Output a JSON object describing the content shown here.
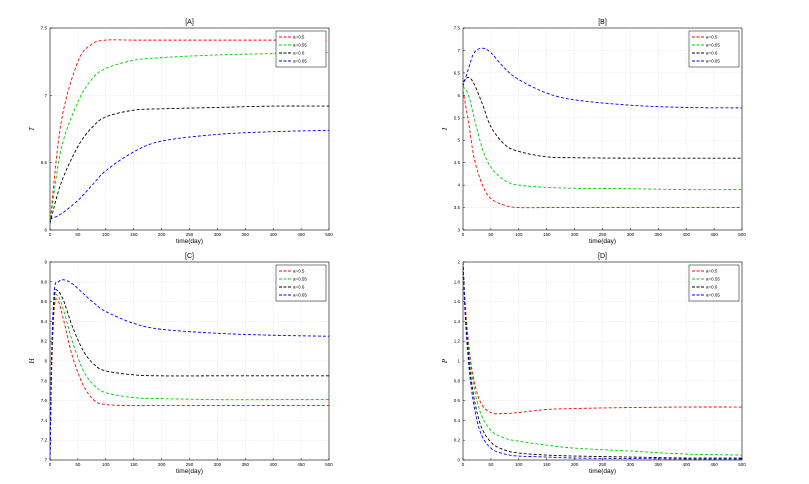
{
  "chart_data": [
    {
      "id": "A",
      "type": "line",
      "title": "[A]",
      "xlabel": "time(day)",
      "ylabel": "T",
      "xlim": [
        0,
        500
      ],
      "ylim": [
        6,
        7.5
      ],
      "xticks": [
        "0",
        "50",
        "100",
        "150",
        "200",
        "250",
        "300",
        "350",
        "400",
        "450",
        "500"
      ],
      "yticks": [
        "6",
        "6.5",
        "7",
        "7.5"
      ],
      "grid": true,
      "legend_position": "top-right",
      "x": [
        0,
        20,
        50,
        75,
        100,
        150,
        200,
        300,
        400,
        500
      ],
      "series": [
        {
          "name": "a=0.5",
          "color": "#ff0000",
          "values": [
            6.05,
            6.8,
            7.25,
            7.38,
            7.41,
            7.41,
            7.41,
            7.41,
            7.41,
            7.41
          ]
        },
        {
          "name": "a=0.55",
          "color": "#00cc00",
          "values": [
            6.05,
            6.6,
            6.95,
            7.12,
            7.2,
            7.26,
            7.28,
            7.3,
            7.31,
            7.32
          ]
        },
        {
          "name": "a=0.6",
          "color": "#000000",
          "values": [
            6.05,
            6.35,
            6.62,
            6.76,
            6.84,
            6.89,
            6.9,
            6.91,
            6.92,
            6.92
          ]
        },
        {
          "name": "a=0.65",
          "color": "#0000ff",
          "values": [
            6.08,
            6.12,
            6.22,
            6.33,
            6.44,
            6.58,
            6.66,
            6.71,
            6.73,
            6.74
          ]
        }
      ]
    },
    {
      "id": "B",
      "type": "line",
      "title": "[B]",
      "xlabel": "time(day)",
      "ylabel": "I",
      "xlim": [
        0,
        500
      ],
      "ylim": [
        3,
        7.5
      ],
      "xticks": [
        "0",
        "50",
        "100",
        "150",
        "200",
        "250",
        "300",
        "350",
        "400",
        "450",
        "500"
      ],
      "yticks": [
        "3",
        "3.5",
        "4",
        "4.5",
        "5",
        "5.5",
        "6",
        "6.5",
        "7",
        "7.5"
      ],
      "grid": true,
      "legend_position": "top-right",
      "x": [
        0,
        10,
        20,
        35,
        50,
        75,
        100,
        150,
        200,
        300,
        400,
        500
      ],
      "series": [
        {
          "name": "a=0.5",
          "color": "#ff0000",
          "values": [
            6.1,
            5.4,
            4.6,
            4.0,
            3.7,
            3.55,
            3.5,
            3.5,
            3.5,
            3.5,
            3.5,
            3.5
          ]
        },
        {
          "name": "a=0.55",
          "color": "#00cc00",
          "values": [
            6.2,
            6.0,
            5.5,
            4.8,
            4.4,
            4.1,
            4.0,
            3.95,
            3.93,
            3.92,
            3.9,
            3.9
          ]
        },
        {
          "name": "a=0.6",
          "color": "#000000",
          "values": [
            6.3,
            6.4,
            6.25,
            5.8,
            5.3,
            4.9,
            4.75,
            4.63,
            4.61,
            4.6,
            4.6,
            4.6
          ]
        },
        {
          "name": "a=0.65",
          "color": "#0000ff",
          "values": [
            6.2,
            6.6,
            6.95,
            7.05,
            6.95,
            6.6,
            6.35,
            6.05,
            5.9,
            5.78,
            5.73,
            5.72
          ]
        }
      ]
    },
    {
      "id": "C",
      "type": "line",
      "title": "[C]",
      "xlabel": "time(day)",
      "ylabel": "H",
      "xlim": [
        0,
        500
      ],
      "ylim": [
        7,
        9
      ],
      "xticks": [
        "0",
        "50",
        "100",
        "150",
        "200",
        "250",
        "300",
        "350",
        "400",
        "450",
        "500"
      ],
      "yticks": [
        "7",
        "7.2",
        "7.4",
        "7.6",
        "7.8",
        "8",
        "8.2",
        "8.4",
        "8.6",
        "8.8",
        "9"
      ],
      "grid": true,
      "legend_position": "top-right",
      "x": [
        0,
        3,
        8,
        15,
        25,
        40,
        60,
        80,
        100,
        150,
        200,
        300,
        400,
        500
      ],
      "series": [
        {
          "name": "a=0.5",
          "color": "#ff0000",
          "values": [
            7.0,
            7.9,
            8.55,
            8.6,
            8.4,
            8.05,
            7.75,
            7.6,
            7.56,
            7.55,
            7.55,
            7.55,
            7.55,
            7.55
          ]
        },
        {
          "name": "a=0.55",
          "color": "#00cc00",
          "values": [
            7.0,
            8.0,
            8.6,
            8.65,
            8.5,
            8.2,
            7.9,
            7.75,
            7.68,
            7.63,
            7.62,
            7.61,
            7.61,
            7.61
          ]
        },
        {
          "name": "a=0.6",
          "color": "#000000",
          "values": [
            7.0,
            8.0,
            8.65,
            8.7,
            8.6,
            8.35,
            8.1,
            7.96,
            7.9,
            7.86,
            7.85,
            7.85,
            7.85,
            7.85
          ]
        },
        {
          "name": "a=0.65",
          "color": "#0000ff",
          "values": [
            7.0,
            8.1,
            8.72,
            8.8,
            8.82,
            8.78,
            8.68,
            8.58,
            8.5,
            8.38,
            8.32,
            8.28,
            8.26,
            8.25
          ]
        }
      ]
    },
    {
      "id": "D",
      "type": "line",
      "title": "[D]",
      "xlabel": "time(day)",
      "ylabel": "P",
      "xlim": [
        0,
        500
      ],
      "ylim": [
        0,
        2
      ],
      "xticks": [
        "0",
        "50",
        "100",
        "150",
        "200",
        "250",
        "300",
        "350",
        "400",
        "450",
        "500"
      ],
      "yticks": [
        "0",
        "0.2",
        "0.4",
        "0.6",
        "0.8",
        "1",
        "1.2",
        "1.4",
        "1.6",
        "1.8",
        "2"
      ],
      "grid": true,
      "legend_position": "top-right",
      "x": [
        0,
        5,
        15,
        30,
        50,
        75,
        100,
        150,
        200,
        300,
        400,
        500
      ],
      "series": [
        {
          "name": "a=0.5",
          "color": "#ff0000",
          "values": [
            2.0,
            1.5,
            0.95,
            0.6,
            0.48,
            0.47,
            0.48,
            0.51,
            0.52,
            0.53,
            0.535,
            0.535
          ]
        },
        {
          "name": "a=0.55",
          "color": "#00cc00",
          "values": [
            2.0,
            1.45,
            0.9,
            0.5,
            0.3,
            0.22,
            0.19,
            0.15,
            0.12,
            0.09,
            0.06,
            0.05
          ]
        },
        {
          "name": "a=0.6",
          "color": "#000000",
          "values": [
            2.0,
            1.4,
            0.8,
            0.38,
            0.18,
            0.1,
            0.07,
            0.05,
            0.04,
            0.03,
            0.02,
            0.02
          ]
        },
        {
          "name": "a=0.65",
          "color": "#0000ff",
          "values": [
            2.0,
            1.35,
            0.72,
            0.3,
            0.12,
            0.06,
            0.04,
            0.03,
            0.02,
            0.015,
            0.01,
            0.01
          ]
        }
      ]
    }
  ]
}
